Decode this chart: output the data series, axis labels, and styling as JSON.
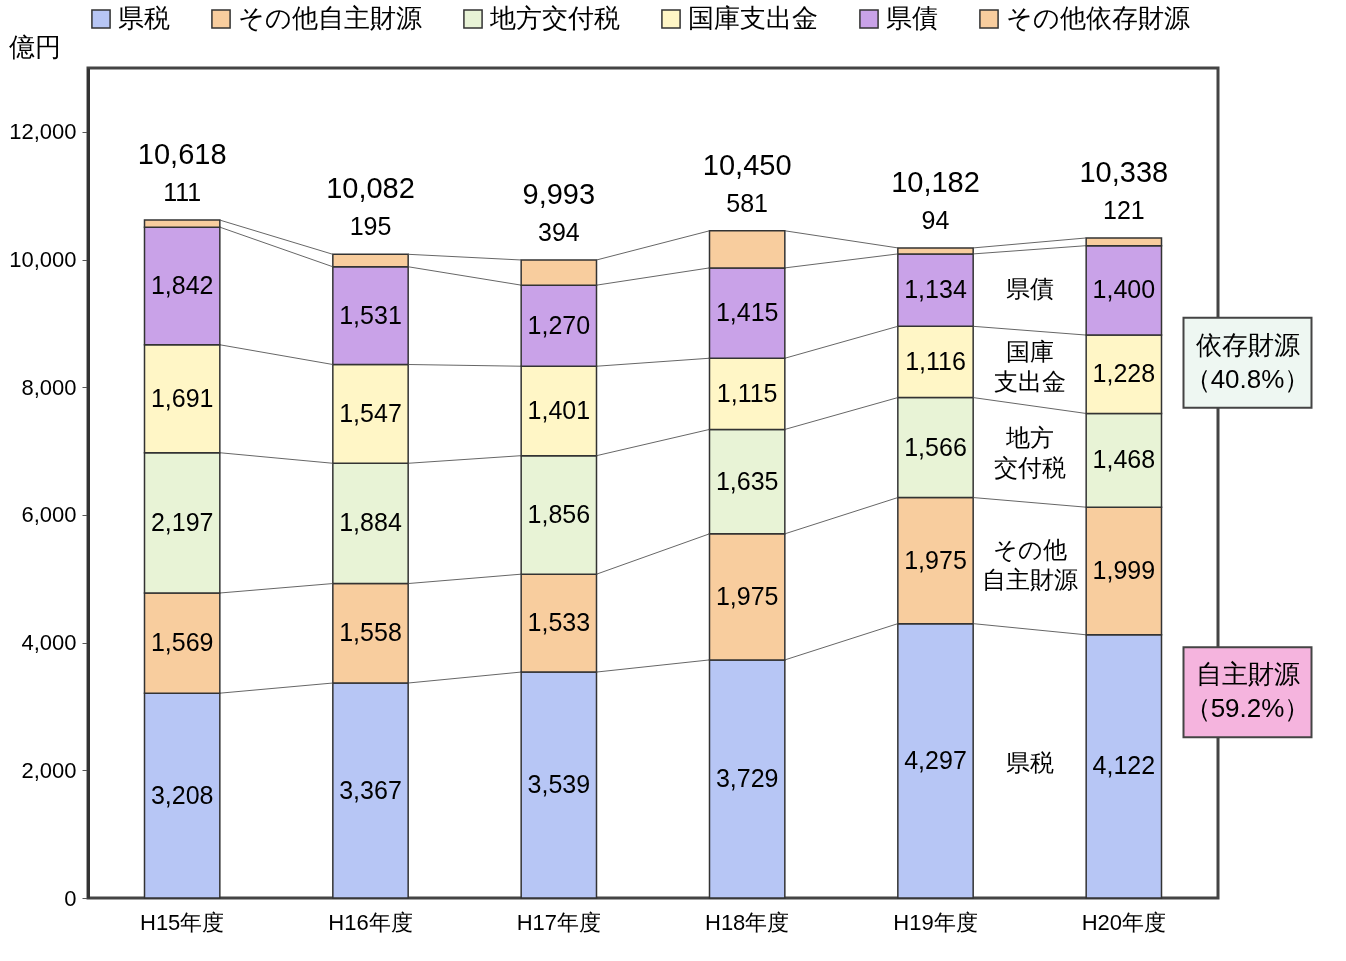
{
  "chart_data": {
    "type": "bar",
    "stacked": true,
    "legend": "top",
    "ylabel": "億円",
    "categories": [
      "H15年度",
      "H16年度",
      "H17年度",
      "H18年度",
      "H19年度",
      "H20年度"
    ],
    "series": [
      {
        "name": "県税",
        "color": "#b7c6f5",
        "values": [
          3208,
          3367,
          3539,
          3729,
          4297,
          4122
        ],
        "value_labels": [
          "3,208",
          "3,367",
          "3,539",
          "3,729",
          "4,297",
          "4,122"
        ]
      },
      {
        "name": "その他自主財源",
        "color": "#f8cd9e",
        "values": [
          1569,
          1558,
          1533,
          1975,
          1975,
          1999
        ],
        "value_labels": [
          "1,569",
          "1,558",
          "1,533",
          "1,975",
          "1,975",
          "1,999"
        ]
      },
      {
        "name": "地方交付税",
        "color": "#e8f3d6",
        "values": [
          2197,
          1884,
          1856,
          1635,
          1566,
          1468
        ],
        "value_labels": [
          "2,197",
          "1,884",
          "1,856",
          "1,635",
          "1,566",
          "1,468"
        ]
      },
      {
        "name": "国庫支出金",
        "color": "#fff6c6",
        "values": [
          1691,
          1547,
          1401,
          1115,
          1116,
          1228
        ],
        "value_labels": [
          "1,691",
          "1,547",
          "1,401",
          "1,115",
          "1,116",
          "1,228"
        ]
      },
      {
        "name": "県債",
        "color": "#c9a2e8",
        "values": [
          1842,
          1531,
          1270,
          1415,
          1134,
          1400
        ],
        "value_labels": [
          "1,842",
          "1,531",
          "1,270",
          "1,415",
          "1,134",
          "1,400"
        ]
      },
      {
        "name": "その他依存財源",
        "color": "#f8cd9e",
        "values": [
          111,
          195,
          394,
          581,
          94,
          121
        ],
        "value_labels": [
          "111",
          "195",
          "394",
          "581",
          "94",
          "121"
        ]
      }
    ],
    "totals": [
      "10,618",
      "10,082",
      "9,993",
      "10,450",
      "10,182",
      "10,338"
    ],
    "ylim": [
      0,
      13000
    ],
    "yticks": [
      0,
      {
        "value": 2000,
        "label": "2,000"
      },
      {
        "value": 4000,
        "label": "4,000"
      },
      {
        "value": 6000,
        "label": "6,000"
      },
      {
        "value": 8000,
        "label": "8,000"
      },
      {
        "value": 10000,
        "label": "10,000"
      },
      {
        "value": 12000,
        "label": "12,000"
      }
    ],
    "annotations": [
      "県債",
      "国庫支出金",
      "地方交付税",
      "その他自主財源",
      "県税",
      "依存財源（40.8%）",
      "自主財源（59.2%）"
    ]
  }
}
